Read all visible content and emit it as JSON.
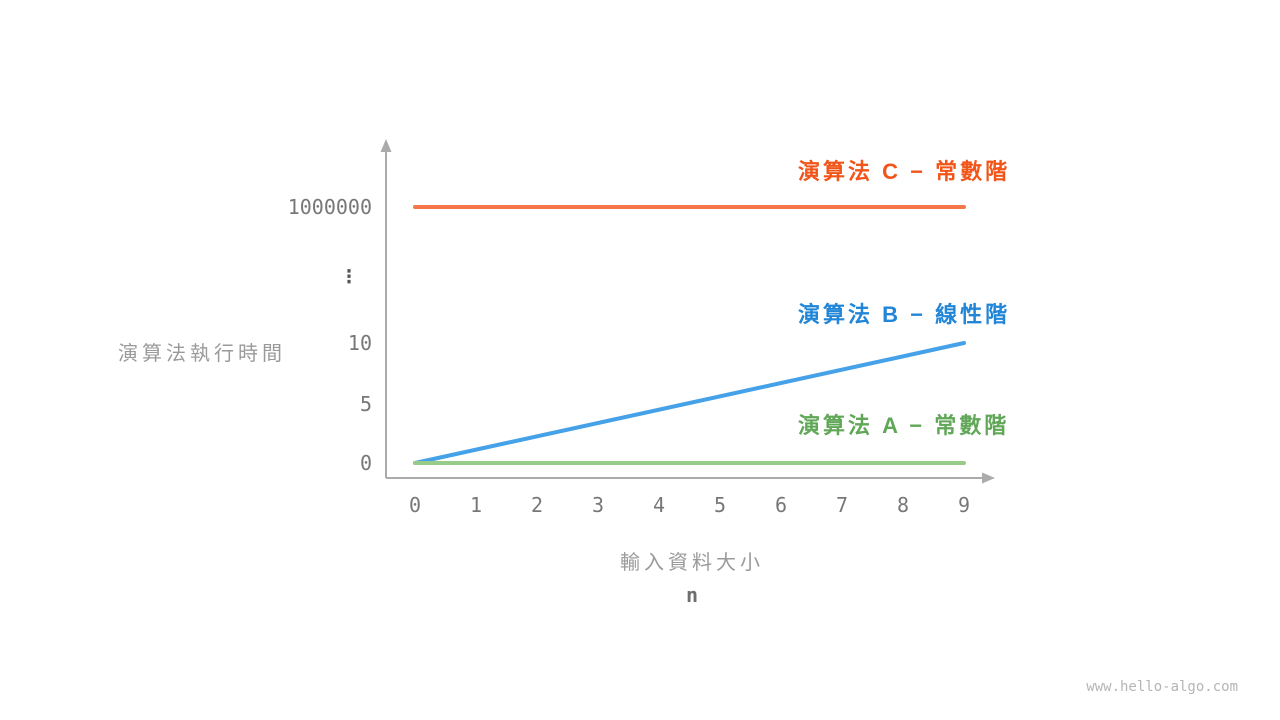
{
  "watermark": "www.hello-algo.com",
  "chart_data": {
    "type": "line",
    "title": "",
    "xlabel": "輸入資料大小",
    "xlabel_sub": "n",
    "ylabel": "演算法執行時間",
    "x_ticks": [
      "0",
      "1",
      "2",
      "3",
      "4",
      "5",
      "6",
      "7",
      "8",
      "9"
    ],
    "y_ticks": [
      "0",
      "5",
      "10",
      "⋮",
      "1000000"
    ],
    "xlim": [
      0,
      9
    ],
    "y_axis_note": "broken scale between 10 and 1000000",
    "grid": false,
    "legend_position": "right-of-lines",
    "series": [
      {
        "id": "C",
        "name": "演算法 C − 常數階",
        "color": "#f4764a",
        "label_color": "#f2551a",
        "x": [
          0,
          9
        ],
        "y": [
          1000000,
          1000000
        ]
      },
      {
        "id": "B",
        "name": "演算法 B − 線性階",
        "color": "#45a1e8",
        "label_color": "#2186d8",
        "x": [
          0,
          9
        ],
        "y": [
          0,
          10
        ]
      },
      {
        "id": "A",
        "name": "演算法 A − 常數階",
        "color": "#97cb88",
        "label_color": "#61a758",
        "x": [
          0,
          9
        ],
        "y": [
          0,
          0
        ]
      }
    ]
  }
}
